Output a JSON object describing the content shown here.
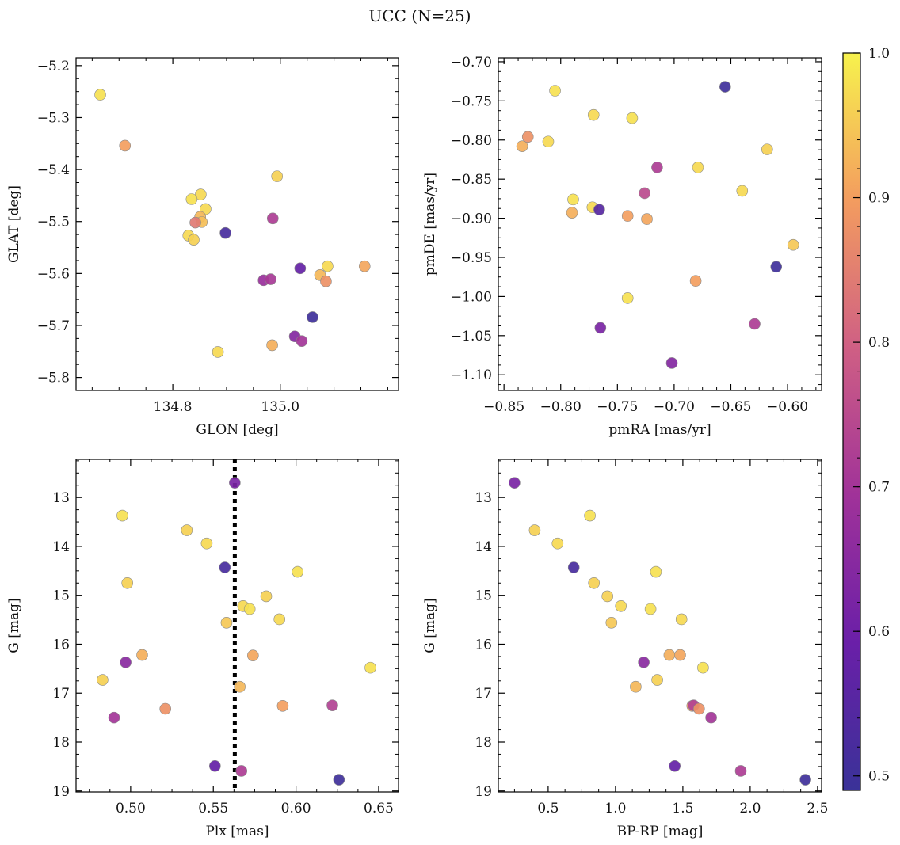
{
  "figure": {
    "title": "UCC (N=25)"
  },
  "colorbar": {
    "ticks": [
      0.5,
      0.6,
      0.7,
      0.8,
      0.9,
      1.0
    ],
    "tick_labels": [
      "0.5",
      "0.6",
      "0.7",
      "0.8",
      "0.9",
      "1.0"
    ],
    "range": [
      0.49,
      1.0
    ],
    "colormap": "plasma"
  },
  "chart_data": [
    {
      "type": "scatter",
      "name": "glon-glat",
      "xlabel": "GLON [deg]",
      "ylabel": "GLAT [deg]",
      "xlim": [
        134.62,
        135.22
      ],
      "ylim": [
        -5.825,
        -5.185
      ],
      "xticks": [
        134.8,
        135.0
      ],
      "xtick_labels": [
        "134.8",
        "135.0"
      ],
      "yticks": [
        -5.8,
        -5.7,
        -5.6,
        -5.5,
        -5.4,
        -5.3,
        -5.2
      ],
      "ytick_labels": [
        "−5.8",
        "−5.7",
        "−5.6",
        "−5.5",
        "−5.4",
        "−5.3",
        "−5.2"
      ],
      "points": [
        {
          "x": 134.665,
          "y": -5.256,
          "c": 0.98
        },
        {
          "x": 134.711,
          "y": -5.354,
          "c": 0.9
        },
        {
          "x": 134.994,
          "y": -5.413,
          "c": 0.96
        },
        {
          "x": 134.852,
          "y": -5.448,
          "c": 0.97
        },
        {
          "x": 134.835,
          "y": -5.457,
          "c": 0.98
        },
        {
          "x": 134.861,
          "y": -5.476,
          "c": 0.97
        },
        {
          "x": 134.851,
          "y": -5.491,
          "c": 0.93
        },
        {
          "x": 134.986,
          "y": -5.494,
          "c": 0.72
        },
        {
          "x": 134.854,
          "y": -5.501,
          "c": 0.94
        },
        {
          "x": 134.842,
          "y": -5.502,
          "c": 0.84
        },
        {
          "x": 134.898,
          "y": -5.522,
          "c": 0.52
        },
        {
          "x": 134.829,
          "y": -5.527,
          "c": 0.97
        },
        {
          "x": 134.839,
          "y": -5.535,
          "c": 0.96
        },
        {
          "x": 135.037,
          "y": -5.59,
          "c": 0.58
        },
        {
          "x": 135.088,
          "y": -5.586,
          "c": 0.97
        },
        {
          "x": 135.157,
          "y": -5.586,
          "c": 0.91
        },
        {
          "x": 135.074,
          "y": -5.603,
          "c": 0.93
        },
        {
          "x": 135.085,
          "y": -5.615,
          "c": 0.88
        },
        {
          "x": 134.969,
          "y": -5.613,
          "c": 0.68
        },
        {
          "x": 134.982,
          "y": -5.611,
          "c": 0.71
        },
        {
          "x": 135.06,
          "y": -5.684,
          "c": 0.5
        },
        {
          "x": 135.027,
          "y": -5.721,
          "c": 0.64
        },
        {
          "x": 135.04,
          "y": -5.73,
          "c": 0.7
        },
        {
          "x": 134.985,
          "y": -5.738,
          "c": 0.92
        },
        {
          "x": 134.884,
          "y": -5.751,
          "c": 0.97
        }
      ]
    },
    {
      "type": "scatter",
      "name": "pmra-pmde",
      "xlabel": "pmRA [mas/yr]",
      "ylabel": "pmDE [mas/yr]",
      "xlim": [
        -0.855,
        -0.57
      ],
      "ylim": [
        -1.12,
        -0.695
      ],
      "xticks": [
        -0.85,
        -0.8,
        -0.75,
        -0.7,
        -0.65,
        -0.6
      ],
      "xtick_labels": [
        "−0.85",
        "−0.80",
        "−0.75",
        "−0.70",
        "−0.65",
        "−0.60"
      ],
      "yticks": [
        -1.1,
        -1.05,
        -1.0,
        -0.95,
        -0.9,
        -0.85,
        -0.8,
        -0.75,
        -0.7
      ],
      "ytick_labels": [
        "−1.10",
        "−1.05",
        "−1.00",
        "−0.95",
        "−0.90",
        "−0.85",
        "−0.80",
        "−0.75",
        "−0.70"
      ],
      "points": [
        {
          "x": -0.655,
          "y": -0.732,
          "c": 0.5
        },
        {
          "x": -0.805,
          "y": -0.737,
          "c": 0.98
        },
        {
          "x": -0.771,
          "y": -0.768,
          "c": 0.97
        },
        {
          "x": -0.737,
          "y": -0.772,
          "c": 0.98
        },
        {
          "x": -0.829,
          "y": -0.796,
          "c": 0.88
        },
        {
          "x": -0.834,
          "y": -0.808,
          "c": 0.92
        },
        {
          "x": -0.811,
          "y": -0.802,
          "c": 0.97
        },
        {
          "x": -0.618,
          "y": -0.812,
          "c": 0.96
        },
        {
          "x": -0.715,
          "y": -0.835,
          "c": 0.72
        },
        {
          "x": -0.679,
          "y": -0.835,
          "c": 0.97
        },
        {
          "x": -0.64,
          "y": -0.865,
          "c": 0.97
        },
        {
          "x": -0.726,
          "y": -0.868,
          "c": 0.75
        },
        {
          "x": -0.789,
          "y": -0.876,
          "c": 0.98
        },
        {
          "x": -0.772,
          "y": -0.886,
          "c": 0.97
        },
        {
          "x": -0.766,
          "y": -0.889,
          "c": 0.55
        },
        {
          "x": -0.79,
          "y": -0.893,
          "c": 0.92
        },
        {
          "x": -0.741,
          "y": -0.897,
          "c": 0.9
        },
        {
          "x": -0.724,
          "y": -0.901,
          "c": 0.91
        },
        {
          "x": -0.595,
          "y": -0.934,
          "c": 0.95
        },
        {
          "x": -0.61,
          "y": -0.962,
          "c": 0.5
        },
        {
          "x": -0.681,
          "y": -0.98,
          "c": 0.9
        },
        {
          "x": -0.741,
          "y": -1.002,
          "c": 0.98
        },
        {
          "x": -0.629,
          "y": -1.035,
          "c": 0.72
        },
        {
          "x": -0.765,
          "y": -1.04,
          "c": 0.62
        },
        {
          "x": -0.702,
          "y": -1.085,
          "c": 0.64
        }
      ]
    },
    {
      "type": "scatter",
      "name": "plx-g",
      "xlabel": "Plx [mas]",
      "ylabel": "G [mag]",
      "xlim": [
        0.467,
        0.662
      ],
      "ylim": [
        19.02,
        12.22
      ],
      "xticks": [
        0.5,
        0.55,
        0.6,
        0.65
      ],
      "xtick_labels": [
        "0.50",
        "0.55",
        "0.60",
        "0.65"
      ],
      "yticks": [
        13,
        14,
        15,
        16,
        17,
        18,
        19
      ],
      "ytick_labels": [
        "13",
        "14",
        "15",
        "16",
        "17",
        "18",
        "19"
      ],
      "vline": 0.563,
      "points": [
        {
          "x": 0.563,
          "y": 12.7,
          "c": 0.62
        },
        {
          "x": 0.495,
          "y": 13.37,
          "c": 0.98
        },
        {
          "x": 0.534,
          "y": 13.67,
          "c": 0.96
        },
        {
          "x": 0.546,
          "y": 13.94,
          "c": 0.97
        },
        {
          "x": 0.557,
          "y": 14.43,
          "c": 0.52
        },
        {
          "x": 0.601,
          "y": 14.52,
          "c": 0.98
        },
        {
          "x": 0.498,
          "y": 14.75,
          "c": 0.96
        },
        {
          "x": 0.582,
          "y": 15.02,
          "c": 0.96
        },
        {
          "x": 0.568,
          "y": 15.22,
          "c": 0.97
        },
        {
          "x": 0.572,
          "y": 15.28,
          "c": 0.98
        },
        {
          "x": 0.59,
          "y": 15.49,
          "c": 0.97
        },
        {
          "x": 0.558,
          "y": 15.56,
          "c": 0.95
        },
        {
          "x": 0.507,
          "y": 16.22,
          "c": 0.92
        },
        {
          "x": 0.574,
          "y": 16.23,
          "c": 0.91
        },
        {
          "x": 0.497,
          "y": 16.37,
          "c": 0.65
        },
        {
          "x": 0.645,
          "y": 16.48,
          "c": 0.98
        },
        {
          "x": 0.483,
          "y": 16.73,
          "c": 0.96
        },
        {
          "x": 0.566,
          "y": 16.87,
          "c": 0.93
        },
        {
          "x": 0.592,
          "y": 17.26,
          "c": 0.9
        },
        {
          "x": 0.622,
          "y": 17.25,
          "c": 0.73
        },
        {
          "x": 0.521,
          "y": 17.32,
          "c": 0.88
        },
        {
          "x": 0.49,
          "y": 17.5,
          "c": 0.7
        },
        {
          "x": 0.551,
          "y": 18.49,
          "c": 0.58
        },
        {
          "x": 0.567,
          "y": 18.59,
          "c": 0.72
        },
        {
          "x": 0.626,
          "y": 18.77,
          "c": 0.5
        }
      ]
    },
    {
      "type": "scatter",
      "name": "bprp-g",
      "xlabel": "BP-RP [mag]",
      "ylabel": "G [mag]",
      "xlim": [
        0.13,
        2.53
      ],
      "ylim": [
        19.02,
        12.22
      ],
      "xticks": [
        0.5,
        1.0,
        1.5,
        2.0,
        2.5
      ],
      "xtick_labels": [
        "0.5",
        "1.0",
        "1.5",
        "2.0",
        "2.5"
      ],
      "yticks": [
        13,
        14,
        15,
        16,
        17,
        18,
        19
      ],
      "ytick_labels": [
        "13",
        "14",
        "15",
        "16",
        "17",
        "18",
        "19"
      ],
      "points": [
        {
          "x": 0.25,
          "y": 12.7,
          "c": 0.62
        },
        {
          "x": 0.81,
          "y": 13.37,
          "c": 0.98
        },
        {
          "x": 0.4,
          "y": 13.67,
          "c": 0.96
        },
        {
          "x": 0.57,
          "y": 13.94,
          "c": 0.97
        },
        {
          "x": 0.69,
          "y": 14.43,
          "c": 0.52
        },
        {
          "x": 1.3,
          "y": 14.52,
          "c": 0.98
        },
        {
          "x": 0.84,
          "y": 14.75,
          "c": 0.96
        },
        {
          "x": 0.94,
          "y": 15.02,
          "c": 0.96
        },
        {
          "x": 1.04,
          "y": 15.22,
          "c": 0.97
        },
        {
          "x": 1.26,
          "y": 15.28,
          "c": 0.98
        },
        {
          "x": 1.49,
          "y": 15.49,
          "c": 0.97
        },
        {
          "x": 0.97,
          "y": 15.56,
          "c": 0.95
        },
        {
          "x": 1.4,
          "y": 16.22,
          "c": 0.92
        },
        {
          "x": 1.48,
          "y": 16.22,
          "c": 0.91
        },
        {
          "x": 1.21,
          "y": 16.37,
          "c": 0.65
        },
        {
          "x": 1.65,
          "y": 16.48,
          "c": 0.98
        },
        {
          "x": 1.31,
          "y": 16.73,
          "c": 0.96
        },
        {
          "x": 1.15,
          "y": 16.87,
          "c": 0.93
        },
        {
          "x": 1.57,
          "y": 17.26,
          "c": 0.9
        },
        {
          "x": 1.58,
          "y": 17.25,
          "c": 0.73
        },
        {
          "x": 1.62,
          "y": 17.32,
          "c": 0.88
        },
        {
          "x": 1.71,
          "y": 17.5,
          "c": 0.7
        },
        {
          "x": 1.44,
          "y": 18.49,
          "c": 0.58
        },
        {
          "x": 1.93,
          "y": 18.59,
          "c": 0.72
        },
        {
          "x": 2.41,
          "y": 18.77,
          "c": 0.5
        }
      ]
    }
  ]
}
